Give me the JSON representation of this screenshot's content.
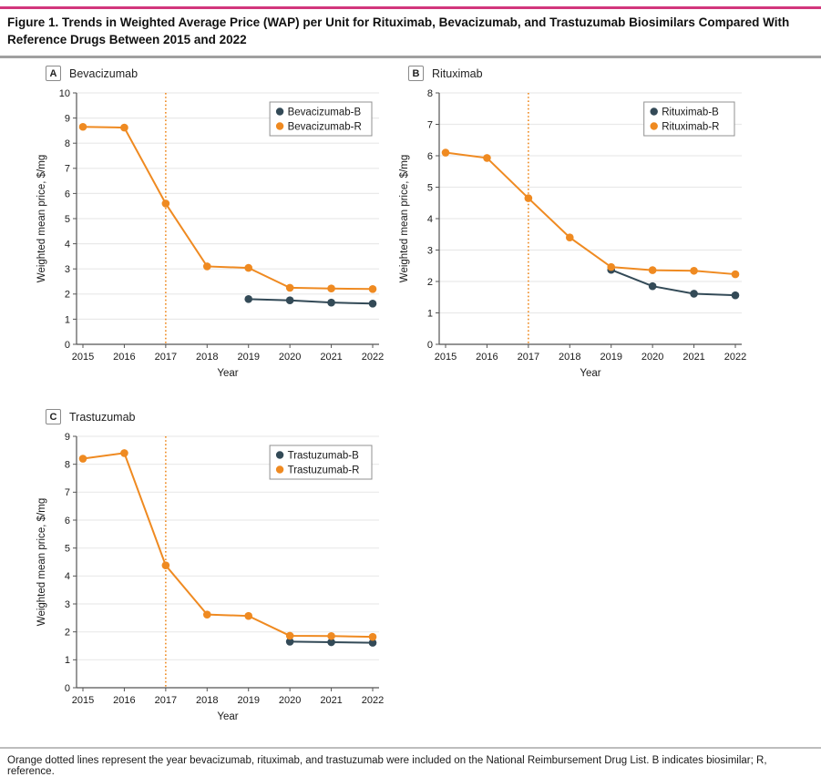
{
  "figure": {
    "title": "Figure 1. Trends in Weighted Average Price (WAP) per Unit for Rituximab, Bevacizumab, and Trastuzumab Biosimilars Compared With Reference Drugs Between 2015 and 2022",
    "footnote": "Orange dotted lines represent the year bevacizumab, rituximab, and trastuzumab were included on the National Reimbursement Drug List. B indicates biosimilar; R, reference."
  },
  "colors": {
    "accent_rule": "#d2367c",
    "title_divider": "#a0a0a0",
    "footnote_divider": "#bdbdbd",
    "biosimilar_series": "#334a57",
    "reference_series": "#ef8a21",
    "vline": "#ef8a21",
    "gridline": "#e9e9e9",
    "axis": "#555555",
    "legend_border": "#909090",
    "text": "#1a1a1a"
  },
  "chart_data": [
    {
      "type": "line",
      "panel_label": "A",
      "panel_title": "Bevacizumab",
      "xlabel": "Year",
      "ylabel": "Weighted mean price, $/mg",
      "xlim": [
        2015,
        2022
      ],
      "x_ticks": [
        2015,
        2016,
        2017,
        2018,
        2019,
        2020,
        2021,
        2022
      ],
      "ylim": [
        0,
        10
      ],
      "y_tick_step": 1,
      "grid": "horizontal",
      "legend_position": "top-right",
      "vline": {
        "x": 2017,
        "style": "dotted",
        "color_key": "vline"
      },
      "series": [
        {
          "name": "Bevacizumab-B",
          "color_key": "biosimilar_series",
          "x": [
            2019,
            2020,
            2021,
            2022
          ],
          "values": [
            1.8,
            1.75,
            1.66,
            1.62
          ]
        },
        {
          "name": "Bevacizumab-R",
          "color_key": "reference_series",
          "x": [
            2015,
            2016,
            2017,
            2018,
            2019,
            2020,
            2021,
            2022
          ],
          "values": [
            8.65,
            8.62,
            5.6,
            3.1,
            3.04,
            2.25,
            2.22,
            2.2
          ]
        }
      ]
    },
    {
      "type": "line",
      "panel_label": "B",
      "panel_title": "Rituximab",
      "xlabel": "Year",
      "ylabel": "Weighted mean price, $/mg",
      "xlim": [
        2015,
        2022
      ],
      "x_ticks": [
        2015,
        2016,
        2017,
        2018,
        2019,
        2020,
        2021,
        2022
      ],
      "ylim": [
        0,
        8
      ],
      "y_tick_step": 1,
      "grid": "horizontal",
      "legend_position": "top-right",
      "vline": {
        "x": 2017,
        "style": "dotted",
        "color_key": "vline"
      },
      "series": [
        {
          "name": "Rituximab-B",
          "color_key": "biosimilar_series",
          "x": [
            2019,
            2020,
            2021,
            2022
          ],
          "values": [
            2.37,
            1.85,
            1.61,
            1.56
          ]
        },
        {
          "name": "Rituximab-R",
          "color_key": "reference_series",
          "x": [
            2015,
            2016,
            2017,
            2018,
            2019,
            2020,
            2021,
            2022
          ],
          "values": [
            6.1,
            5.93,
            4.65,
            3.4,
            2.46,
            2.36,
            2.34,
            2.23
          ]
        }
      ]
    },
    {
      "type": "line",
      "panel_label": "C",
      "panel_title": "Trastuzumab",
      "xlabel": "Year",
      "ylabel": "Weighted mean price, $/mg",
      "xlim": [
        2015,
        2022
      ],
      "x_ticks": [
        2015,
        2016,
        2017,
        2018,
        2019,
        2020,
        2021,
        2022
      ],
      "ylim": [
        0,
        9
      ],
      "y_tick_step": 1,
      "grid": "horizontal",
      "legend_position": "top-right",
      "vline": {
        "x": 2017,
        "style": "dotted",
        "color_key": "vline"
      },
      "series": [
        {
          "name": "Trastuzumab-B",
          "color_key": "biosimilar_series",
          "x": [
            2020,
            2021,
            2022
          ],
          "values": [
            1.65,
            1.63,
            1.61
          ]
        },
        {
          "name": "Trastuzumab-R",
          "color_key": "reference_series",
          "x": [
            2015,
            2016,
            2017,
            2018,
            2019,
            2020,
            2021,
            2022
          ],
          "values": [
            8.2,
            8.4,
            4.38,
            2.62,
            2.57,
            1.86,
            1.85,
            1.82
          ]
        }
      ]
    }
  ]
}
